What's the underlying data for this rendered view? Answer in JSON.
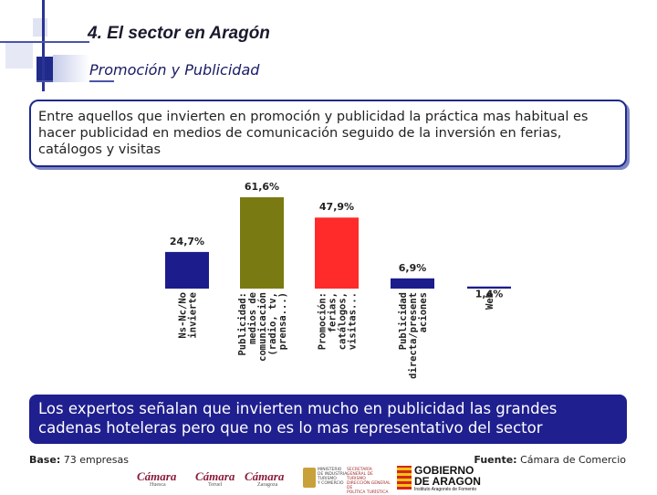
{
  "header": {
    "title": "4. El sector en Aragón",
    "subtitle": "Promoción y Publicidad"
  },
  "intro_text": "Entre aquellos que invierten en promoción y publicidad la práctica mas habitual es hacer publicidad en medios de comunicación seguido de la inversión en ferias, catálogos y visitas",
  "chart_data": {
    "type": "bar",
    "title": "",
    "xlabel": "",
    "ylabel": "",
    "ylim": [
      0,
      61.6
    ],
    "categories": [
      "Ns-Nc/No invierte",
      "Publicidad: medios de comunicación (radio, tv, prensa...)",
      "Promoción: ferias, catálogos, visitas...",
      "Publicidad directa/presentaciones",
      "Web"
    ],
    "category_lines": [
      [
        "Ns-Nc/No",
        "invierte"
      ],
      [
        "Publicidad:",
        "medios de",
        "comunicación",
        "(radio, tv,",
        "prensa...)"
      ],
      [
        "Promoción:",
        "ferias,",
        "catálogos,",
        "visitas..."
      ],
      [
        "Publicidad",
        "directa/present",
        "aciones"
      ],
      [
        "Web"
      ]
    ],
    "values": [
      24.7,
      61.6,
      47.9,
      6.9,
      1.4
    ],
    "value_labels": [
      "24,7%",
      "61,6%",
      "47,9%",
      "6,9%",
      "1,4%"
    ],
    "colors": [
      "#1c1c8c",
      "#7a7a12",
      "#ff2a2a",
      "#1c1c8c",
      "#1c1c8c"
    ],
    "grid": false
  },
  "callout": "Los expertos señalan que invierten mucho en publicidad las grandes cadenas hoteleras pero que no es lo mas representativo del sector",
  "footer": {
    "base_label": "Base:",
    "base_value": "73 empresas",
    "source_label": "Fuente:",
    "source_value": "Cámara de Comercio"
  },
  "logos": {
    "camara": "Cámara",
    "camara_cities": [
      "Huesca",
      "Teruel",
      "Zaragoza"
    ],
    "ministerio": [
      "MINISTERIO",
      "DE INDUSTRIA,",
      "TURISMO",
      "Y COMERCIO"
    ],
    "secretaria": [
      "SECRETARÍA GENERAL DE",
      "TURISMO",
      "DIRECCIÓN GENERAL DE",
      "POLÍTICA TURÍSTICA"
    ],
    "gobierno": [
      "GOBIERNO",
      "DE ARAGON"
    ],
    "gobierno_sub": "Instituto Aragonés de Fomento"
  }
}
